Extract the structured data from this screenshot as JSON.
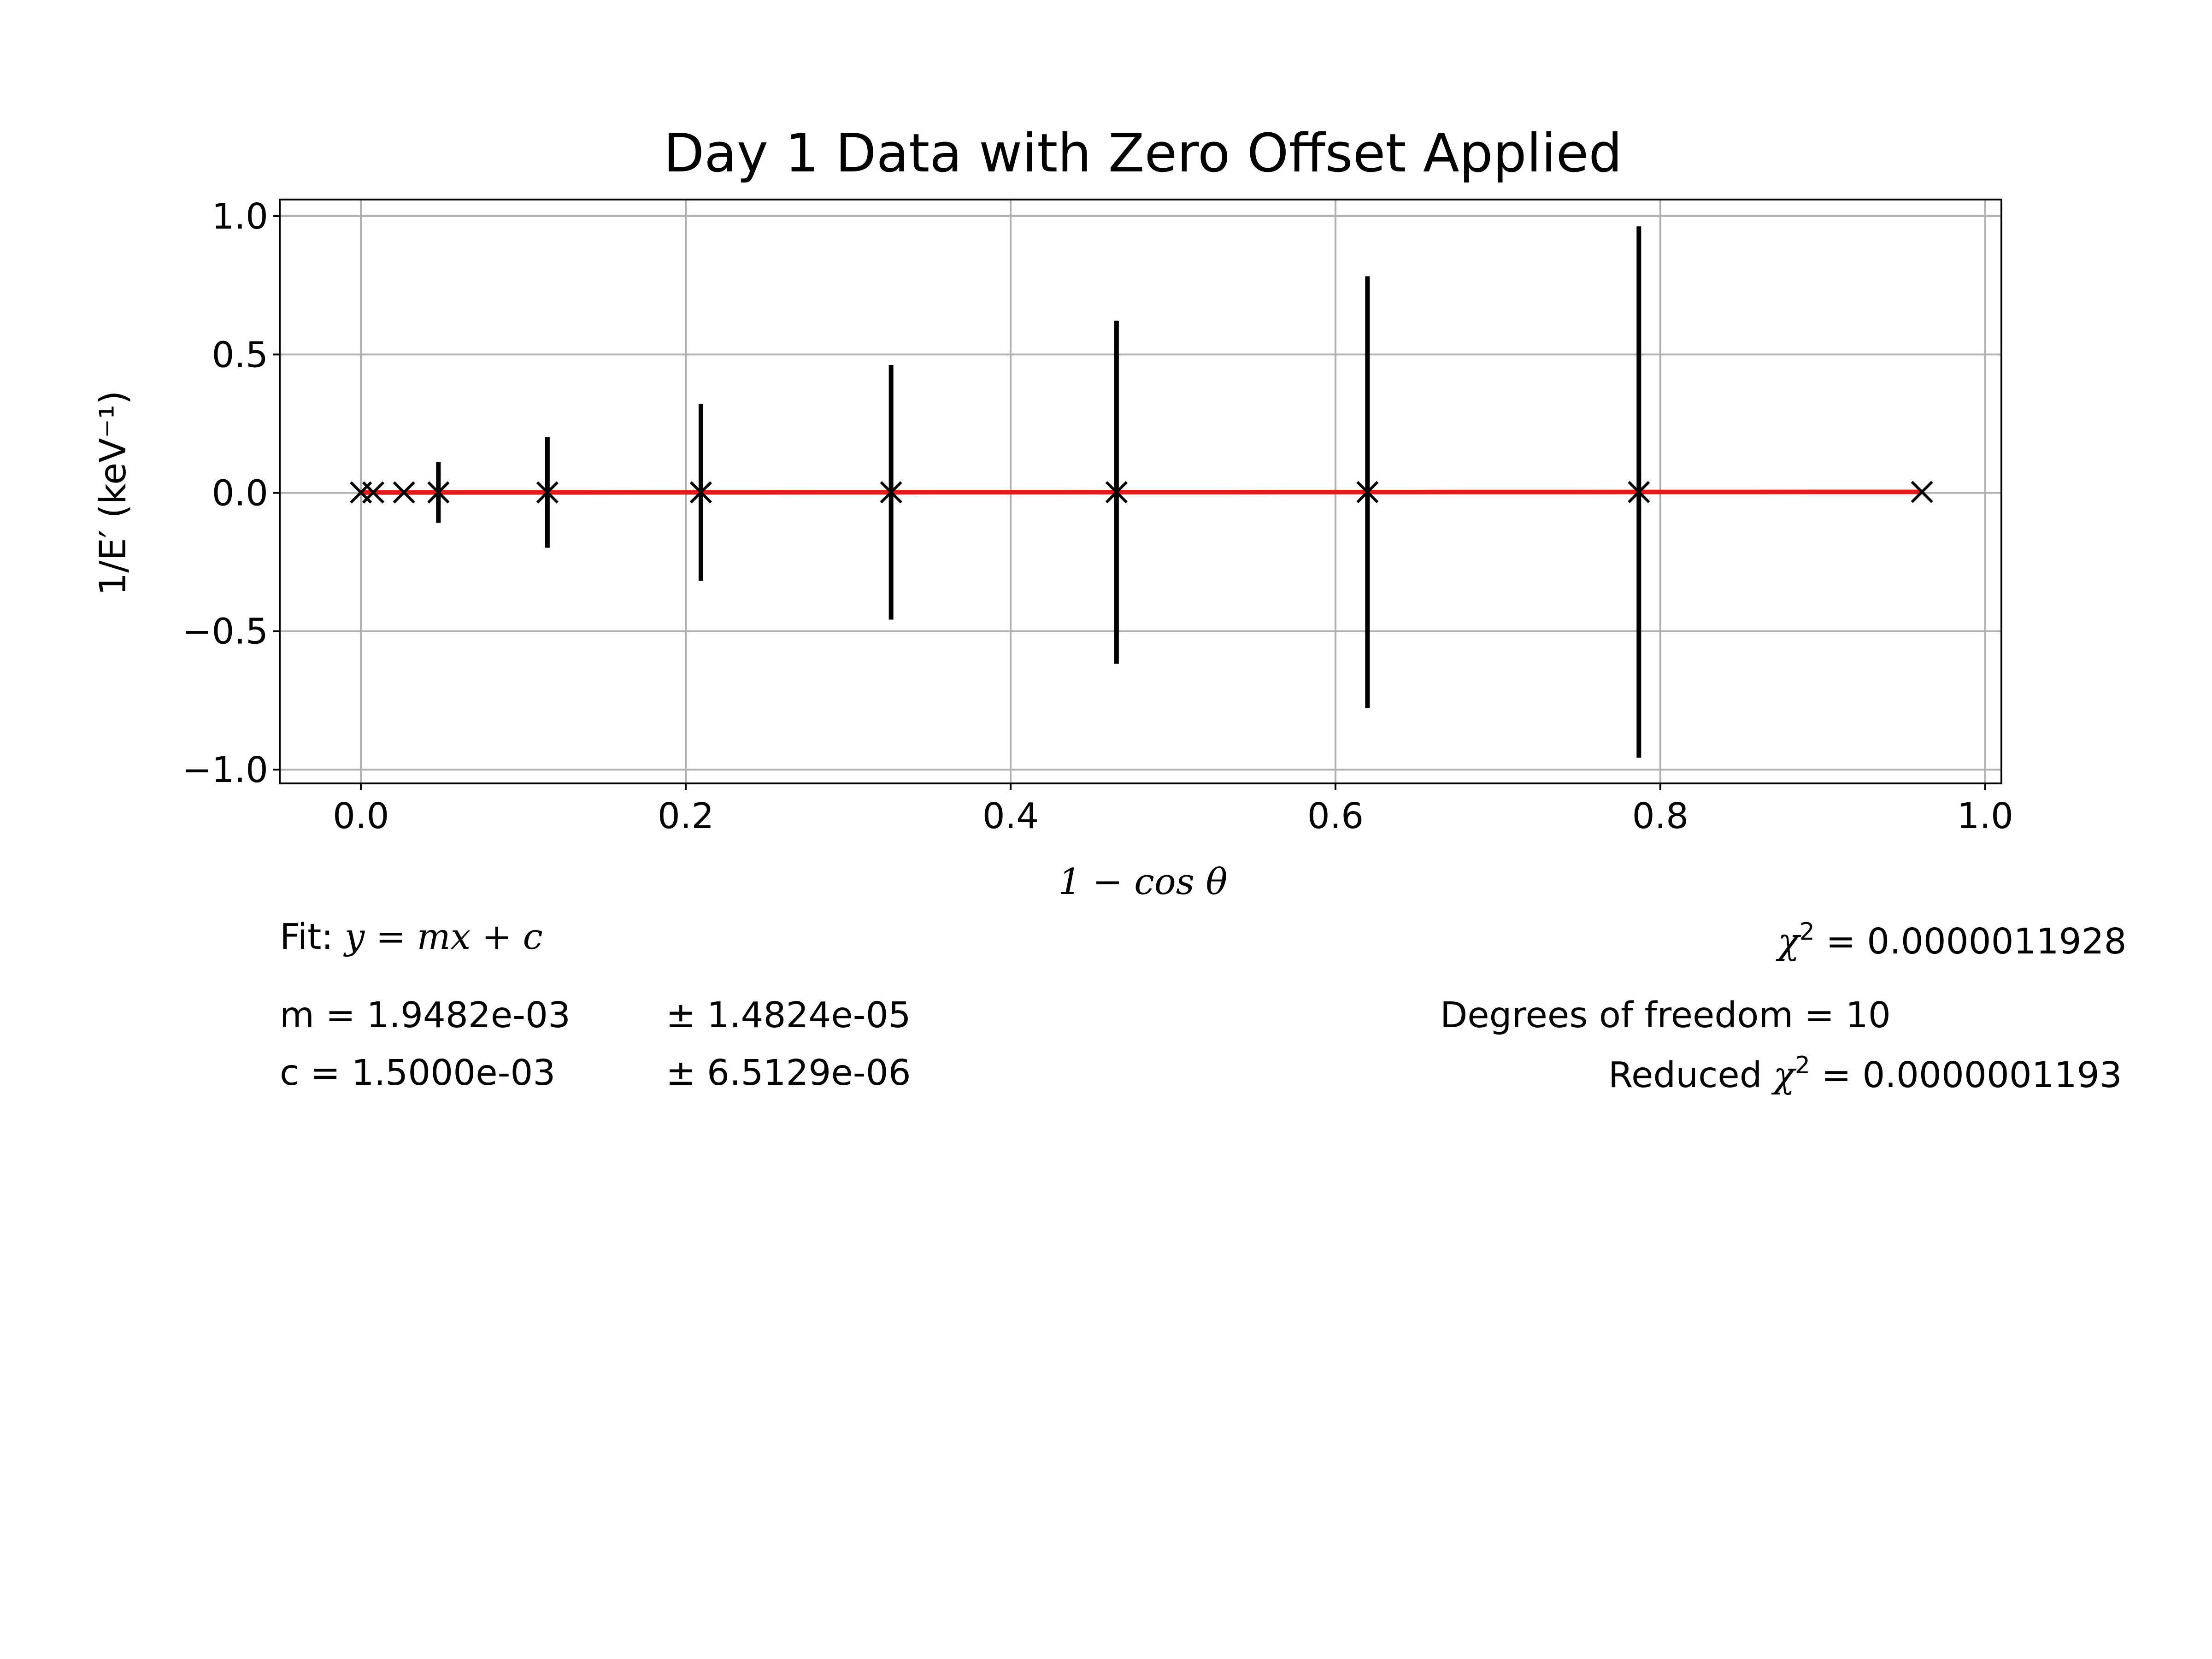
{
  "chart_data": {
    "type": "scatter",
    "title": "Day 1 Data with Zero Offset Applied",
    "xlabel": "1 − cos θ",
    "ylabel": "1/E′ (keV⁻¹)",
    "xlim": [
      -0.05,
      1.01
    ],
    "ylim": [
      -1.05,
      1.06
    ],
    "xticks": [
      0.0,
      0.2,
      0.4,
      0.6,
      0.8,
      1.0
    ],
    "xtick_labels": [
      "0.0",
      "0.2",
      "0.4",
      "0.6",
      "0.8",
      "1.0"
    ],
    "yticks": [
      -1.0,
      -0.5,
      0.0,
      0.5,
      1.0
    ],
    "ytick_labels": [
      "−1.0",
      "−0.5",
      "0.0",
      "0.5",
      "1.0"
    ],
    "grid": true,
    "colors": {
      "fit_line": "#e41a1c",
      "markers": "#000000",
      "grid": "#b0b0b0"
    },
    "series": [
      {
        "marker": "x",
        "x": [
          0.0,
          0.0076,
          0.0265,
          0.0477,
          0.1148,
          0.2093,
          0.3264,
          0.4652,
          0.6197,
          0.7868,
          0.9611
        ],
        "y": [
          0.0015,
          0.0015,
          0.0016,
          0.0016,
          0.0017,
          0.0019,
          0.0021,
          0.0024,
          0.0027,
          0.003,
          0.0034
        ],
        "yerr": [
          0.0,
          0.0,
          0.0,
          0.11,
          0.2,
          0.32,
          0.46,
          0.62,
          0.78,
          0.96,
          0.0
        ]
      }
    ],
    "fit": {
      "m": 0.0019482,
      "c": 0.0015,
      "x_range": [
        0.0,
        0.9611
      ]
    }
  },
  "annotations": {
    "fit_label_prefix": "Fit: ",
    "fit_equation": "y = mx + c",
    "m_value": "m = 1.9482e-03",
    "m_error": "± 1.4824e-05",
    "c_value": "c = 1.5000e-03",
    "c_error": "± 6.5129e-06",
    "chi2_symbol": "χ",
    "chi2_exp": "2",
    "chi2_value": " = 0.0000011928",
    "dof": "Degrees of freedom = 10",
    "reduced_prefix": "Reduced ",
    "reduced_symbol": "χ",
    "reduced_exp": "2",
    "reduced_value": " = 0.0000001193"
  }
}
